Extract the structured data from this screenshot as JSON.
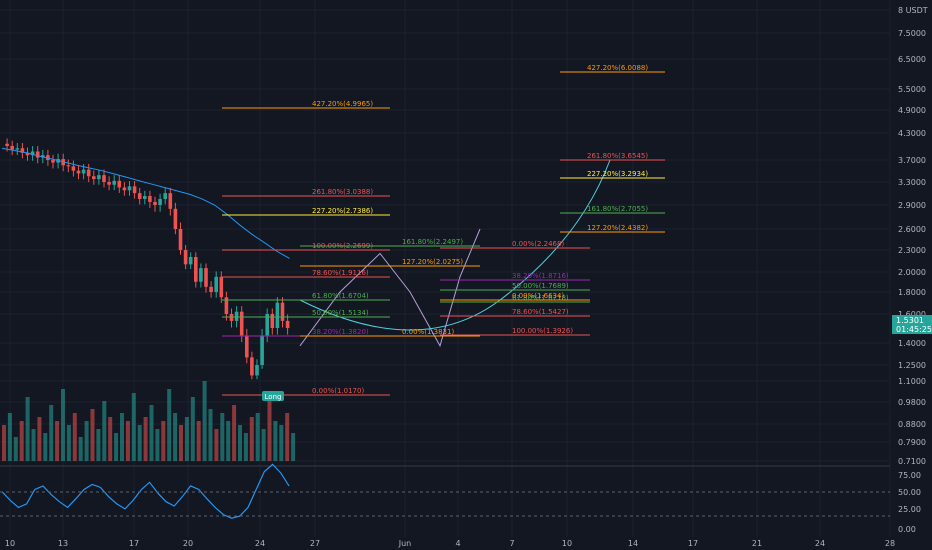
{
  "chart_data": {
    "type": "candlestick",
    "symbol_currency": "USDT",
    "price_scale_ticks": [
      "8 USDT",
      "7.5000",
      "6.5000",
      "5.5000",
      "4.9000",
      "4.3000",
      "3.7000",
      "3.3000",
      "2.9000",
      "2.6000",
      "2.3000",
      "2.0000",
      "1.8000",
      "1.6000",
      "1.4000",
      "1.2500",
      "1.1000",
      "0.9800",
      "0.8800",
      "0.7900",
      "0.7100"
    ],
    "oscillator_ticks": [
      "75.00",
      "50.00",
      "25.00",
      "0.00"
    ],
    "time_ticks": [
      "10",
      "13",
      "17",
      "20",
      "24",
      "27",
      "Jun",
      "4",
      "7",
      "10",
      "14",
      "17",
      "21",
      "24",
      "28"
    ],
    "current_price": "1.5301",
    "countdown": "01:45:25",
    "signal_label": "Long",
    "colors": {
      "background": "#131722",
      "up": "#26a69a",
      "down": "#ef5350",
      "ma": "#2196f3",
      "oscillator": "#2196f3",
      "projection": "#b39ddb",
      "projection2": "#4dd0e1"
    },
    "fib_levels": [
      {
        "group": "A",
        "text": "427.20%(4.9965)",
        "color": "#ff9800"
      },
      {
        "group": "A",
        "text": "261.80%(3.0388)",
        "color": "#ef5350"
      },
      {
        "group": "A",
        "text": "227.20%(2.7386)",
        "color": "#ffeb3b"
      },
      {
        "group": "A",
        "text": "100.00%(2.2699)",
        "color": "#ef5350"
      },
      {
        "group": "A",
        "text": "78.60%(1.9116)",
        "color": "#ef5350"
      },
      {
        "group": "A",
        "text": "61.80%(1.6704)",
        "color": "#4caf50"
      },
      {
        "group": "A",
        "text": "50.00%(1.5134)",
        "color": "#4caf50"
      },
      {
        "group": "A",
        "text": "38.20%(1.3820)",
        "color": "#9c27b0"
      },
      {
        "group": "A",
        "text": "0.00%(1.0170)",
        "color": "#ef5350"
      },
      {
        "group": "B",
        "text": "161.80%(2.2497)",
        "color": "#4caf50"
      },
      {
        "group": "B",
        "text": "127.20%(2.0275)",
        "color": "#ff9800"
      },
      {
        "group": "B",
        "text": "0.00%(1.3831)",
        "color": "#ff9800"
      },
      {
        "group": "C",
        "text": "0.00%(2.2468)",
        "color": "#ef5350"
      },
      {
        "group": "C",
        "text": "38.20%(1.8716)",
        "color": "#9c27b0"
      },
      {
        "group": "C",
        "text": "50.00%(1.7689)",
        "color": "#4caf50"
      },
      {
        "group": "C",
        "text": "61.80%(1.6718)",
        "color": "#4caf50"
      },
      {
        "group": "C",
        "text": "78.60%(1.5427)",
        "color": "#ef5350"
      },
      {
        "group": "C",
        "text": "100.00%(1.3926)",
        "color": "#ef5350"
      },
      {
        "group": "C",
        "text": "0.00%(1.6634)",
        "color": "#ff9800"
      },
      {
        "group": "D",
        "text": "427.20%(6.0088)",
        "color": "#ff9800"
      },
      {
        "group": "D",
        "text": "261.80%(3.6545)",
        "color": "#ef5350"
      },
      {
        "group": "D",
        "text": "227.20%(3.2934)",
        "color": "#ffeb3b"
      },
      {
        "group": "D",
        "text": "161.80%(2.7055)",
        "color": "#4caf50"
      },
      {
        "group": "D",
        "text": "127.20%(2.4382)",
        "color": "#ff9800"
      }
    ],
    "close_path": [
      4.05,
      4.0,
      3.92,
      3.95,
      3.85,
      3.8,
      3.88,
      3.75,
      3.8,
      3.7,
      3.65,
      3.72,
      3.6,
      3.58,
      3.5,
      3.45,
      3.52,
      3.4,
      3.35,
      3.42,
      3.3,
      3.25,
      3.32,
      3.2,
      3.15,
      3.22,
      3.1,
      3.0,
      3.05,
      2.95,
      2.9,
      3.0,
      3.1,
      2.85,
      2.6,
      2.3,
      2.1,
      2.2,
      1.9,
      2.05,
      1.85,
      1.8,
      1.95,
      1.75,
      1.6,
      1.55,
      1.62,
      1.45,
      1.3,
      1.15,
      1.25,
      1.45,
      1.6,
      1.5,
      1.7,
      1.55,
      1.5
    ],
    "ma_path": [
      3.95,
      3.9,
      3.85,
      3.78,
      3.72,
      3.66,
      3.6,
      3.55,
      3.5,
      3.44,
      3.38,
      3.32,
      3.26,
      3.2,
      3.14,
      3.08,
      3.0,
      2.9,
      2.78,
      2.65,
      2.52,
      2.4,
      2.28,
      2.18
    ],
    "volume_path": [
      0.45,
      0.6,
      0.3,
      0.5,
      0.8,
      0.4,
      0.55,
      0.35,
      0.7,
      0.5,
      0.9,
      0.45,
      0.6,
      0.3,
      0.5,
      0.65,
      0.4,
      0.75,
      0.55,
      0.35,
      0.6,
      0.5,
      0.85,
      0.45,
      0.55,
      0.7,
      0.4,
      0.5,
      0.9,
      0.6,
      0.45,
      0.55,
      0.8,
      0.5,
      1.0,
      0.65,
      0.4,
      0.6,
      0.5,
      0.7,
      0.45,
      0.35,
      0.55,
      0.6,
      0.4,
      0.8,
      0.5,
      0.45,
      0.6,
      0.35
    ],
    "oscillator_path": [
      52,
      40,
      30,
      35,
      55,
      60,
      48,
      38,
      30,
      42,
      55,
      62,
      58,
      45,
      35,
      28,
      40,
      55,
      65,
      50,
      38,
      32,
      45,
      60,
      55,
      42,
      30,
      20,
      15,
      18,
      30,
      55,
      80,
      90,
      78,
      60
    ],
    "projection_path": [
      1.38,
      1.8,
      2.25,
      1.8,
      1.38,
      1.95,
      2.6,
      3.6
    ]
  }
}
